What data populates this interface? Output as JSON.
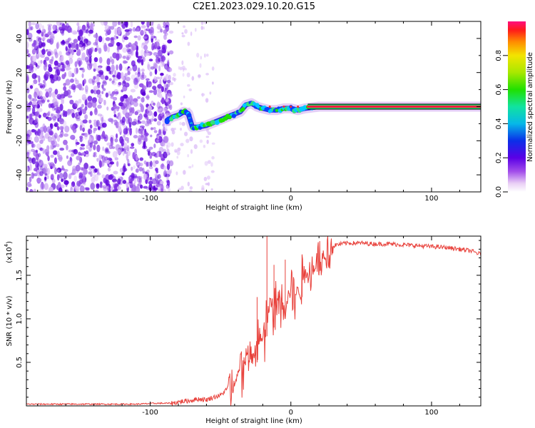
{
  "title": "C2E1.2023.029.10.20.G15",
  "chart_data": [
    {
      "type": "heatmap",
      "title": "",
      "xlabel": "Height of straight line (km)",
      "ylabel": "Frequency (Hz)",
      "xlim": [
        -188,
        135
      ],
      "ylim": [
        -50,
        50
      ],
      "xticks": [
        -100,
        0,
        100
      ],
      "yticks": [
        -40,
        -20,
        0,
        20,
        40
      ],
      "grid": false,
      "colorbar": {
        "label": "Normalized spectral amplitude",
        "range": [
          0,
          1
        ],
        "ticks": [
          "0.0",
          "0.2",
          "0.4",
          "0.6",
          "0.8"
        ]
      },
      "ridge": {
        "x": [
          -88,
          -84,
          -80,
          -76,
          -73,
          -70,
          -66,
          -60,
          -54,
          -48,
          -42,
          -36,
          -32,
          -28,
          -24,
          -20,
          -15,
          -10,
          -5,
          0,
          5,
          10,
          20,
          40,
          60,
          80,
          100,
          120,
          135
        ],
        "y": [
          -8,
          -6,
          -5,
          -3,
          -4,
          -12,
          -12,
          -11,
          -9,
          -7,
          -5,
          -3,
          1,
          2,
          0,
          -1,
          -2,
          -2,
          -1,
          -1,
          -2,
          -1,
          0,
          0,
          0,
          0,
          0,
          0,
          0
        ]
      },
      "noise_region_x": [
        -188,
        -75
      ]
    },
    {
      "type": "line",
      "title": "",
      "xlabel": "Height of straight line (km)",
      "ylabel": "SNR (10 * v/v)",
      "y_multiplier": "(x10",
      "y_multiplier_exp": "4",
      "xlim": [
        -188,
        135
      ],
      "ylim": [
        0,
        1.95
      ],
      "xticks": [
        -100,
        0,
        100
      ],
      "yticks": [
        0.5,
        1.0,
        1.5
      ],
      "ytick_labels": [
        "0.5",
        "1.0",
        "1.5"
      ],
      "grid": false,
      "color": "#e8403a",
      "series": [
        {
          "x": [
            -188,
            -160,
            -130,
            -110,
            -95,
            -85,
            -78,
            -72,
            -66,
            -60,
            -55,
            -50,
            -45,
            -40,
            -36,
            -32,
            -28,
            -24,
            -20,
            -17,
            -15,
            -12,
            -8,
            -4,
            0,
            4,
            8,
            12,
            16,
            20,
            24,
            28,
            32,
            36,
            40,
            50,
            60,
            70,
            80,
            90,
            100,
            110,
            120,
            128,
            135
          ],
          "y": [
            0.02,
            0.02,
            0.02,
            0.02,
            0.03,
            0.03,
            0.05,
            0.06,
            0.08,
            0.07,
            0.1,
            0.12,
            0.2,
            0.3,
            0.45,
            0.55,
            0.5,
            0.7,
            0.8,
            1.0,
            1.2,
            1.1,
            1.3,
            1.2,
            1.35,
            1.3,
            1.45,
            1.55,
            1.6,
            1.7,
            1.75,
            1.8,
            1.85,
            1.86,
            1.87,
            1.87,
            1.86,
            1.86,
            1.85,
            1.84,
            1.83,
            1.82,
            1.8,
            1.78,
            1.74
          ]
        }
      ],
      "spikes": [
        {
          "x": -17,
          "y": 1.95
        },
        {
          "x": -24,
          "y": 1.25
        },
        {
          "x": -12,
          "y": 1.62
        },
        {
          "x": -4,
          "y": 1.68
        },
        {
          "x": 8,
          "y": 1.74
        },
        {
          "x": 20,
          "y": 1.6
        }
      ]
    }
  ]
}
